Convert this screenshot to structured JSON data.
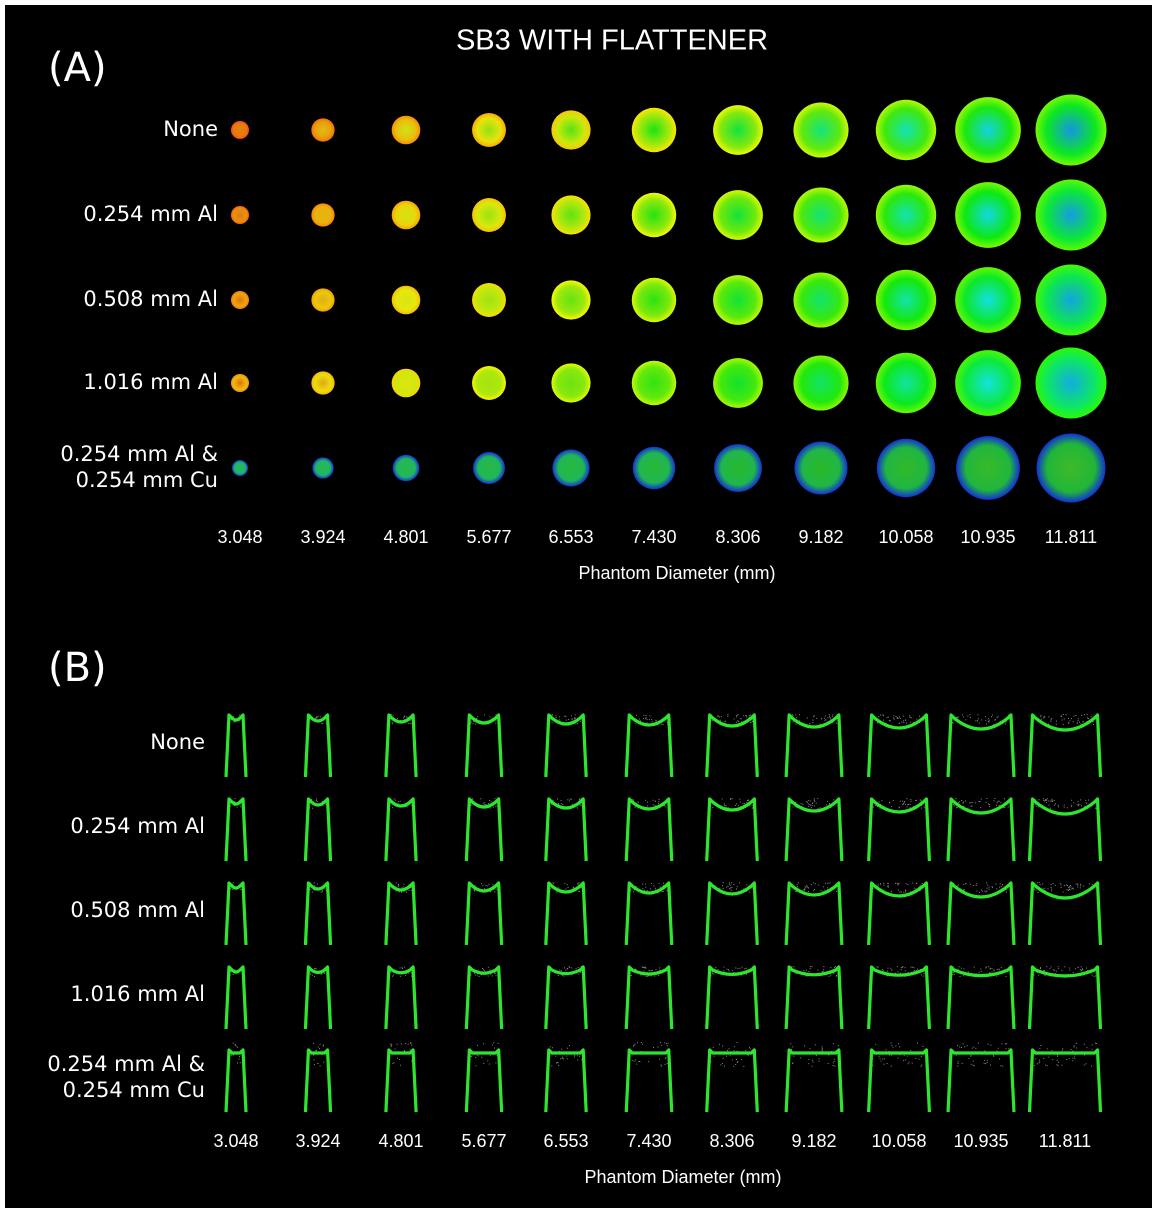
{
  "title": "SB3 WITH FLATTENER",
  "panels": [
    {
      "label": "(A)",
      "rows": [
        [
          "None"
        ],
        [
          "0.254 mm Al"
        ],
        [
          "0.508 mm Al"
        ],
        [
          "1.016 mm Al"
        ],
        [
          "0.254 mm Al &",
          "0.254 mm Cu"
        ]
      ],
      "columns": [
        "3.048",
        "3.924",
        "4.801",
        "5.677",
        "6.553",
        "7.430",
        "8.306",
        "9.182",
        "10.058",
        "10.935",
        "11.811"
      ],
      "axis_label": "Phantom Diameter (mm)"
    },
    {
      "label": "(B)",
      "rows": [
        [
          "None"
        ],
        [
          "0.254 mm Al"
        ],
        [
          "0.508 mm Al"
        ],
        [
          "1.016 mm Al"
        ],
        [
          "0.254 mm Al &",
          "0.254 mm Cu"
        ]
      ],
      "columns": [
        "3.048",
        "3.924",
        "4.801",
        "5.677",
        "6.553",
        "7.430",
        "8.306",
        "9.182",
        "10.058",
        "10.935",
        "11.811"
      ],
      "axis_label": "Phantom Diameter (mm)"
    }
  ]
}
